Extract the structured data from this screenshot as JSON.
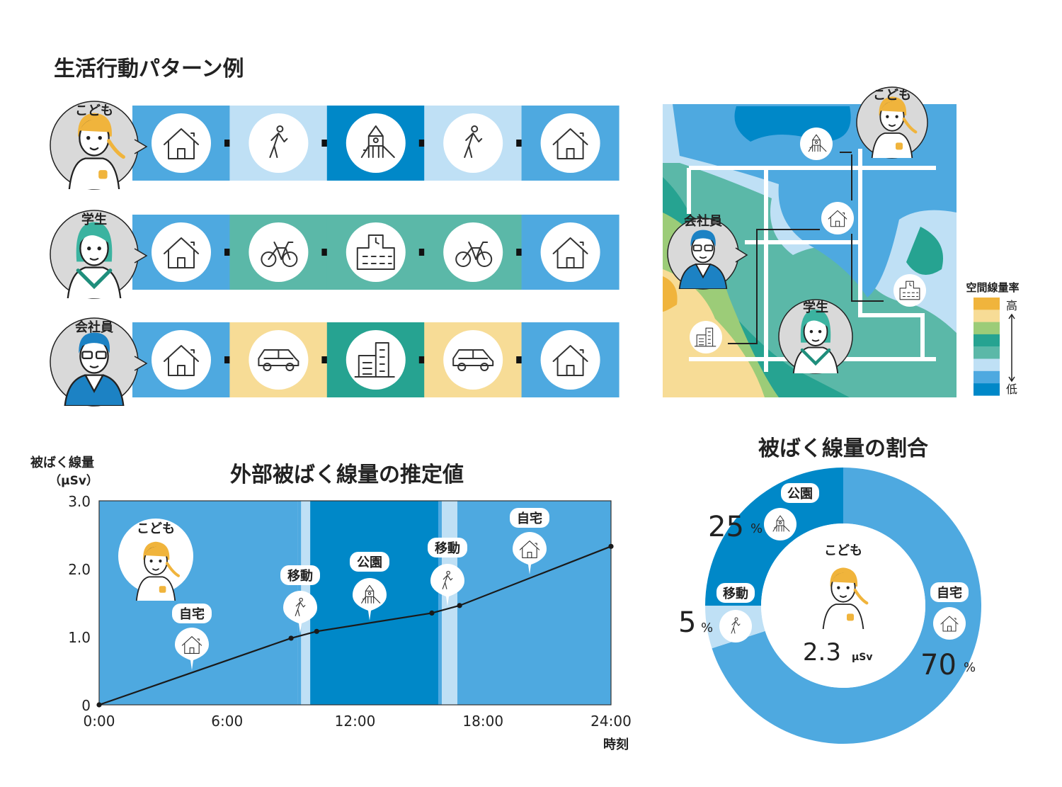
{
  "main_title": "生活行動パターン例",
  "colors": {
    "home": "#4ea9e0",
    "walk": "#bfe0f5",
    "park": "#0088c8",
    "bike": "#5bb8a8",
    "school": "#5bb8a8",
    "car": "#f7dc96",
    "office": "#26a391"
  },
  "patterns": [
    {
      "person": "こども",
      "steps": [
        "home",
        "walk",
        "park",
        "walk",
        "home"
      ],
      "icons": [
        "house-icon",
        "walking-person-icon",
        "playground-icon",
        "walking-person-icon",
        "house-icon"
      ]
    },
    {
      "person": "学生",
      "steps": [
        "home",
        "bike",
        "school",
        "bike",
        "home"
      ],
      "icons": [
        "house-icon",
        "bicycle-icon",
        "school-icon",
        "bicycle-icon",
        "house-icon"
      ]
    },
    {
      "person": "会社員",
      "steps": [
        "home",
        "car",
        "office",
        "car",
        "home"
      ],
      "icons": [
        "house-icon",
        "car-icon",
        "office-building-icon",
        "car-icon",
        "house-icon"
      ]
    }
  ],
  "map": {
    "persons": [
      "こども",
      "会社員",
      "学生"
    ],
    "legend_title": "空間線量率",
    "legend_high": "高",
    "legend_low": "低",
    "legend_colors": [
      "#f0b43c",
      "#f7dc96",
      "#9ccc78",
      "#26a391",
      "#5bb8a8",
      "#bfe0f5",
      "#4ea9e0",
      "#0088c8"
    ]
  },
  "chart_data": [
    {
      "type": "line",
      "title": "外部被ばく線量の推定値",
      "ylabel": "被ばく線量",
      "yunit": "（µSv）",
      "xlabel": "時刻",
      "xlim": [
        0,
        24
      ],
      "ylim": [
        0,
        3.0
      ],
      "xticks": [
        "0:00",
        "6:00",
        "12:00",
        "18:00",
        "24:00"
      ],
      "yticks": [
        "0",
        "1.0",
        "2.0",
        "3.0"
      ],
      "grid": false,
      "person": "こども",
      "x": [
        0,
        9,
        10.2,
        15.6,
        16.9,
        24
      ],
      "y": [
        0,
        0.98,
        1.08,
        1.35,
        1.46,
        2.33
      ],
      "activity_bands": [
        {
          "label": "自宅",
          "from": 0,
          "to": 9.3,
          "kind": "home",
          "icon": "house-icon"
        },
        {
          "label": "移動",
          "from": 9.3,
          "to": 9.9,
          "kind": "walk",
          "icon": "walking-person-icon"
        },
        {
          "label": "公園",
          "from": 9.9,
          "to": 15.9,
          "kind": "park",
          "icon": "playground-icon"
        },
        {
          "label": "移動",
          "from": 15.9,
          "to": 16.8,
          "kind": "walk",
          "icon": "walking-person-icon"
        },
        {
          "label": "自宅",
          "from": 16.8,
          "to": 24,
          "kind": "home",
          "icon": "house-icon"
        }
      ]
    },
    {
      "type": "pie",
      "title": "被ばく線量の割合",
      "center_label": "こども",
      "total_value": "2.3",
      "total_unit": "µSv",
      "slices": [
        {
          "label": "自宅",
          "value": 70,
          "value_text": "70",
          "color": "#4ea9e0",
          "icon": "house-icon"
        },
        {
          "label": "移動",
          "value": 5,
          "value_text": "5",
          "color": "#bfe0f5",
          "icon": "walking-person-icon"
        },
        {
          "label": "公園",
          "value": 25,
          "value_text": "25",
          "color": "#0088c8",
          "icon": "playground-icon"
        }
      ],
      "percent_sign": "%"
    }
  ]
}
